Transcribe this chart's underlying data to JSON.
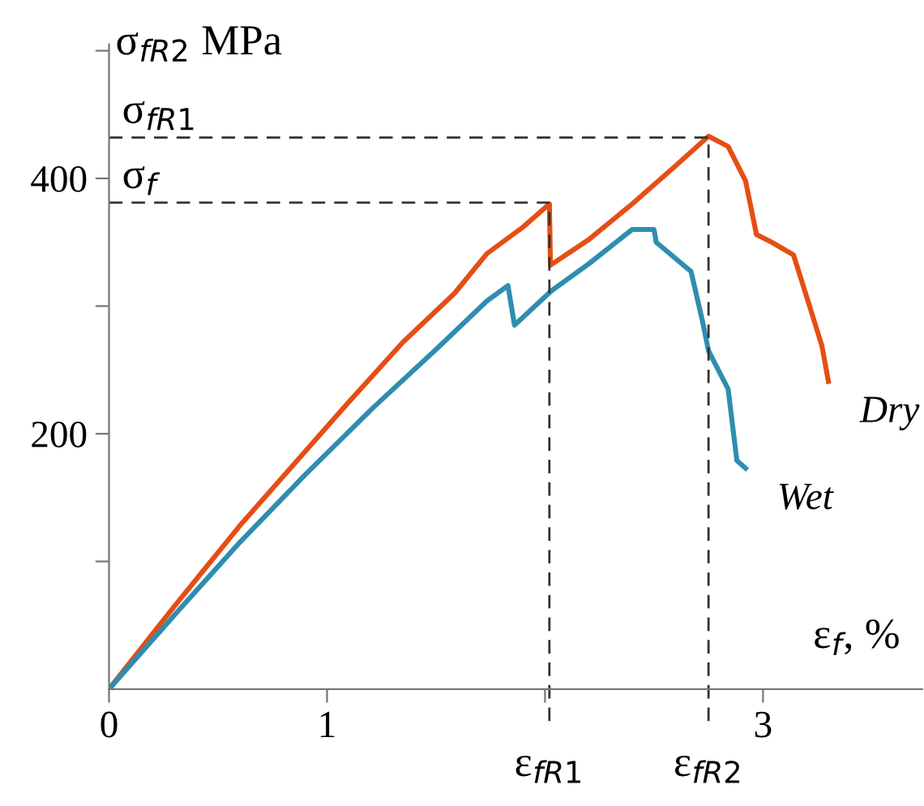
{
  "chart_data": {
    "type": "line",
    "ylabel": "σ$_{fR2}$ MPa",
    "xlabel": "ε$_{f}$, %",
    "xlim": [
      0,
      3.73
    ],
    "ylim": [
      0,
      505
    ],
    "xticks": [
      0,
      1,
      {
        "value": 2,
        "label": null
      },
      3
    ],
    "yticks": [
      {
        "value": 100,
        "label": null
      },
      200,
      {
        "value": 300,
        "label": null
      },
      400,
      {
        "value": 500,
        "label": null
      }
    ],
    "grid": false,
    "legend": false,
    "marker": "none",
    "line_style": "solid",
    "series": [
      {
        "name": "Dry",
        "color": "#e54e14",
        "x": [
          0,
          0.3,
          0.6,
          1.09,
          1.35,
          1.585,
          1.733,
          1.9,
          2.02,
          2.025,
          2.2,
          2.4,
          2.6,
          2.75,
          2.84,
          2.92,
          2.97,
          3.04,
          3.14,
          3.21,
          3.27,
          3.3
        ],
        "values": [
          0,
          65,
          128,
          223,
          272,
          310,
          341,
          362,
          380,
          332,
          352,
          380,
          410,
          433,
          425,
          398,
          356,
          350,
          340,
          302,
          269,
          241
        ]
      },
      {
        "name": "Wet",
        "color": "#2f8db0",
        "x": [
          0,
          0.3,
          0.6,
          0.9,
          1.215,
          1.5,
          1.733,
          1.83,
          1.86,
          2.03,
          2.2,
          2.4,
          2.5,
          2.51,
          2.67,
          2.72,
          2.75,
          2.84,
          2.88,
          2.92
        ],
        "values": [
          0,
          58,
          115,
          168,
          221,
          266,
          304,
          316,
          285,
          312,
          333,
          360,
          360,
          350,
          327,
          290,
          265,
          235,
          179,
          173
        ]
      }
    ],
    "ref_lines": [
      {
        "axis": "y",
        "value": 381,
        "label": "σ$_{f}$",
        "line_style": "dashed",
        "color": "#333333"
      },
      {
        "axis": "y",
        "value": 432,
        "label": "σ$_{fR1}$",
        "line_style": "dashed",
        "color": "#333333"
      },
      {
        "axis": "x",
        "value": 2.02,
        "label": "ε$_{fR1}$",
        "line_style": "dashed",
        "color": "#333333"
      },
      {
        "axis": "x",
        "value": 2.75,
        "label": "ε$_{fR2}$",
        "line_style": "dashed",
        "color": "#333333"
      }
    ]
  }
}
